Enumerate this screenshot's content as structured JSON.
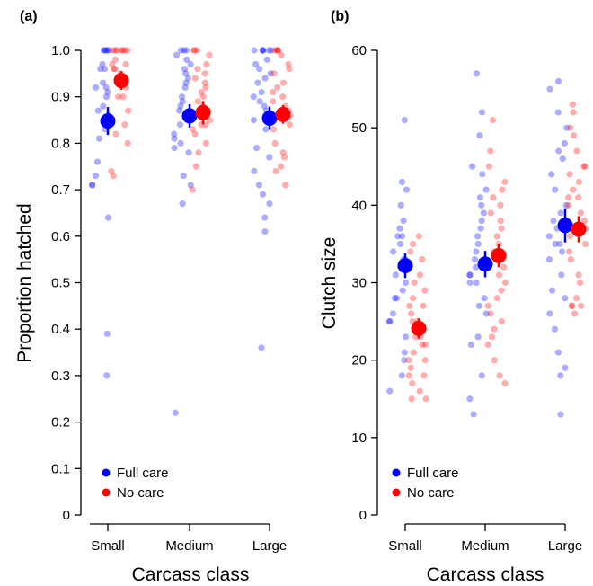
{
  "figure": {
    "panels": [
      "(a)",
      "(b)"
    ]
  },
  "colors": {
    "full_care": "#0000ff",
    "no_care": "#ff0000"
  },
  "chart_data": [
    {
      "type": "scatter",
      "panel_label": "(a)",
      "xlabel": "Carcass class",
      "ylabel": "Proportion hatched",
      "categories": [
        "Small",
        "Medium",
        "Large"
      ],
      "ylim": [
        0,
        1.0
      ],
      "y_ticks": [
        "0",
        "0.1",
        "0.2",
        "0.3",
        "0.4",
        "0.5",
        "0.6",
        "0.7",
        "0.8",
        "0.9",
        "1.0"
      ],
      "y_tick_values": [
        0,
        0.1,
        0.2,
        0.3,
        0.4,
        0.5,
        0.6,
        0.7,
        0.8,
        0.9,
        1.0
      ],
      "grid": false,
      "legend_position": "bottom-left",
      "series": [
        {
          "name": "Full care",
          "color": "#0000ff",
          "means": [
            0.848,
            0.859,
            0.854
          ],
          "errors": [
            0.03,
            0.025,
            0.025
          ],
          "points": [
            [
              1.0,
              1.0,
              1.0,
              1.0,
              1.0,
              0.97,
              0.96,
              0.96,
              0.93,
              0.92,
              0.92,
              0.91,
              0.9,
              0.88,
              0.87,
              0.86,
              0.83,
              0.81,
              0.76,
              0.73,
              0.71,
              0.71,
              0.64,
              0.39,
              0.3
            ],
            [
              1.0,
              1.0,
              1.0,
              0.99,
              0.98,
              0.97,
              0.96,
              0.95,
              0.94,
              0.93,
              0.92,
              0.9,
              0.89,
              0.88,
              0.87,
              0.86,
              0.84,
              0.82,
              0.81,
              0.8,
              0.79,
              0.78,
              0.73,
              0.71,
              0.67,
              0.22
            ],
            [
              1.0,
              1.0,
              1.0,
              1.0,
              1.0,
              1.0,
              0.98,
              0.97,
              0.96,
              0.95,
              0.94,
              0.93,
              0.91,
              0.9,
              0.89,
              0.88,
              0.87,
              0.85,
              0.83,
              0.79,
              0.77,
              0.74,
              0.71,
              0.69,
              0.67,
              0.64,
              0.61,
              0.36
            ]
          ]
        },
        {
          "name": "No care",
          "color": "#ff0000",
          "means": [
            0.935,
            0.866,
            0.862
          ],
          "errors": [
            0.02,
            0.025,
            0.02
          ],
          "points": [
            [
              1.0,
              1.0,
              1.0,
              1.0,
              1.0,
              1.0,
              1.0,
              0.98,
              0.97,
              0.97,
              0.96,
              0.96,
              0.95,
              0.93,
              0.92,
              0.9,
              0.9,
              0.87,
              0.84,
              0.82,
              0.8,
              0.74,
              0.73
            ],
            [
              1.0,
              1.0,
              1.0,
              0.99,
              0.97,
              0.96,
              0.95,
              0.94,
              0.93,
              0.92,
              0.91,
              0.9,
              0.89,
              0.88,
              0.87,
              0.86,
              0.85,
              0.84,
              0.84,
              0.83,
              0.82,
              0.8,
              0.78,
              0.75,
              0.7
            ],
            [
              1.0,
              1.0,
              1.0,
              1.0,
              0.99,
              0.97,
              0.96,
              0.95,
              0.93,
              0.92,
              0.91,
              0.9,
              0.89,
              0.88,
              0.87,
              0.86,
              0.85,
              0.84,
              0.83,
              0.8,
              0.78,
              0.77,
              0.75,
              0.74,
              0.71
            ]
          ]
        }
      ]
    },
    {
      "type": "scatter",
      "panel_label": "(b)",
      "xlabel": "Carcass class",
      "ylabel": "Clutch size",
      "categories": [
        "Small",
        "Medium",
        "Large"
      ],
      "ylim": [
        0,
        60
      ],
      "y_ticks": [
        "0",
        "10",
        "20",
        "30",
        "40",
        "50",
        "60"
      ],
      "y_tick_values": [
        0,
        10,
        20,
        30,
        40,
        50,
        60
      ],
      "grid": false,
      "legend_position": "bottom-left",
      "series": [
        {
          "name": "Full care",
          "color": "#0000ff",
          "means": [
            32.2,
            32.4,
            37.4
          ],
          "errors": [
            1.6,
            1.7,
            2.2
          ],
          "points": [
            [
              51,
              43,
              42,
              40,
              38,
              37,
              36,
              36,
              35,
              34,
              33,
              33,
              32,
              32,
              31,
              30,
              29,
              28,
              28,
              26,
              25,
              25,
              23,
              21,
              20,
              18,
              16
            ],
            [
              57,
              52,
              49,
              45,
              44,
              42,
              41,
              40,
              39,
              38,
              37,
              36,
              35,
              34,
              33,
              33,
              32,
              31,
              31,
              30,
              30,
              28,
              27,
              26,
              23,
              22,
              18,
              15,
              13
            ],
            [
              56,
              55,
              52,
              50,
              48,
              47,
              46,
              44,
              42,
              40,
              39,
              38,
              37,
              36,
              35,
              35,
              34,
              33,
              31,
              29,
              28,
              26,
              24,
              21,
              19,
              18,
              13
            ]
          ]
        },
        {
          "name": "No care",
          "color": "#ff0000",
          "means": [
            24.1,
            33.5,
            36.9
          ],
          "errors": [
            1.3,
            1.5,
            1.7
          ],
          "points": [
            [
              36,
              35,
              34,
              33,
              31,
              30,
              29,
              28,
              27,
              27,
              26,
              25,
              25,
              24,
              24,
              23,
              23,
              22,
              22,
              21,
              20,
              20,
              19,
              18,
              18,
              17,
              16,
              15,
              15
            ],
            [
              51,
              47,
              45,
              43,
              42,
              41,
              40,
              39,
              38,
              37,
              36,
              35,
              34,
              33,
              32,
              31,
              30,
              29,
              28,
              27,
              26,
              25,
              24,
              23,
              22,
              20,
              18,
              17
            ],
            [
              53,
              52,
              50,
              49,
              47,
              45,
              45,
              44,
              43,
              42,
              41,
              41,
              40,
              39,
              38,
              37,
              36,
              35,
              34,
              33,
              31,
              30,
              28,
              27,
              27,
              27,
              26
            ]
          ]
        }
      ]
    }
  ]
}
